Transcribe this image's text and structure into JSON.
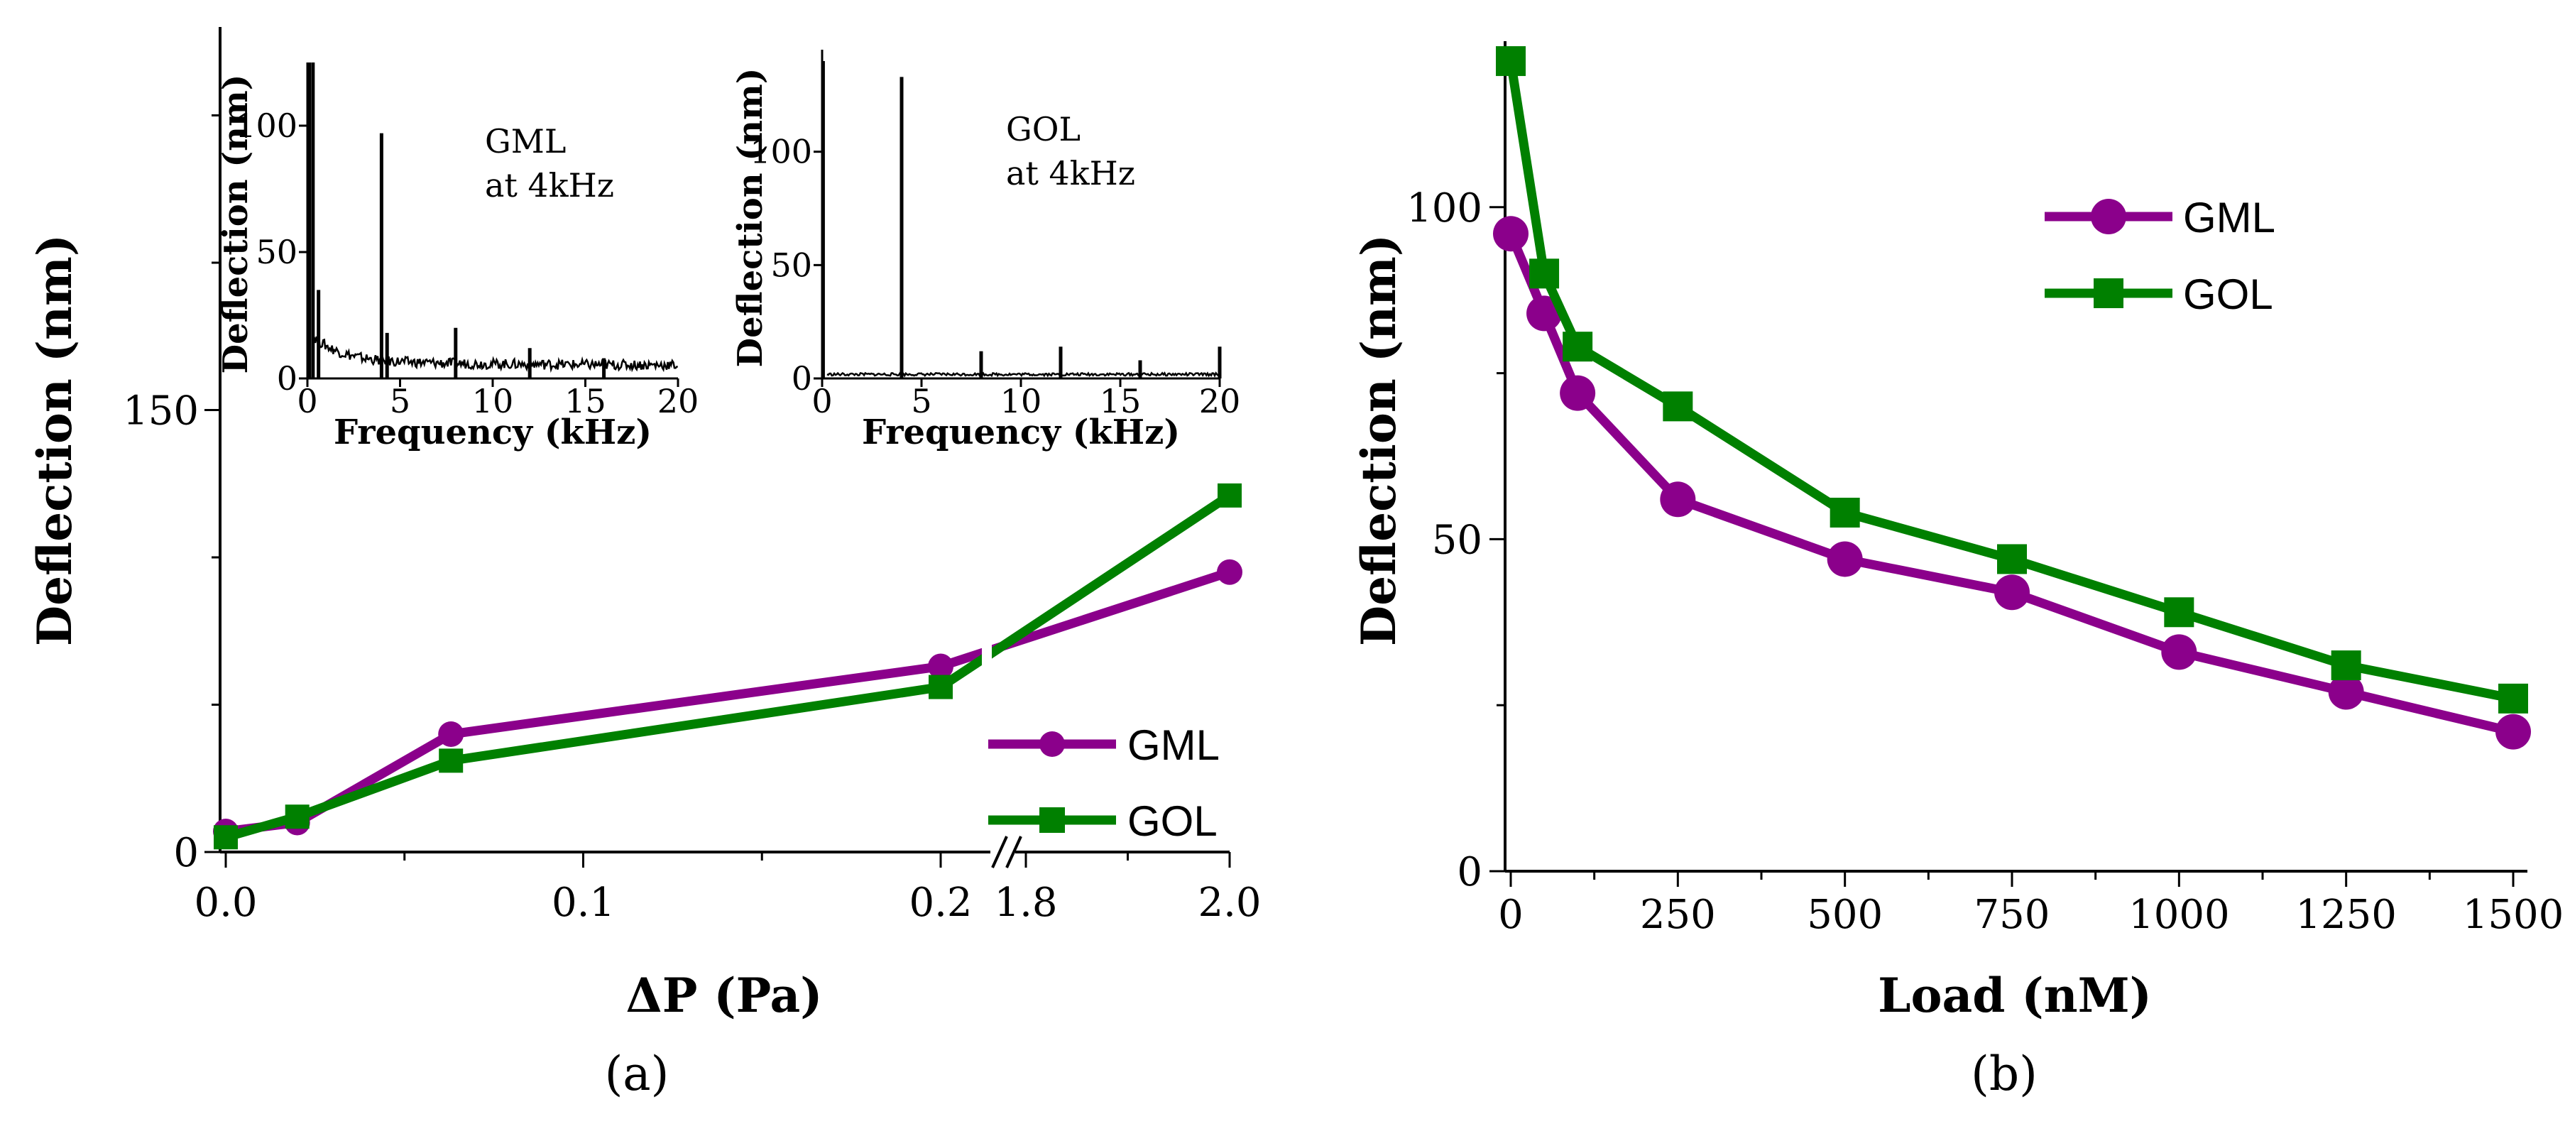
{
  "colors": {
    "GML": "#8B008B",
    "GOL": "#008000",
    "axis": "#000000"
  },
  "chart_data": [
    {
      "panel": "(a)",
      "type": "line",
      "title": "",
      "xlabel": "ΔP (Pa)",
      "ylabel": "Deflection (nm)",
      "x_ticks": [
        "0.0",
        "0.1",
        "0.2",
        "1.8",
        "2.0"
      ],
      "y_ticks": [
        "0",
        "150"
      ],
      "ylim": [
        0,
        280
      ],
      "x_break": [
        0.2,
        1.8
      ],
      "legend": [
        "GML",
        "GOL"
      ],
      "legend_position": "lower-right",
      "series": [
        {
          "name": "GML",
          "marker": "circle",
          "x": [
            0.0,
            0.02,
            0.063,
            0.2,
            2.0
          ],
          "y": [
            7,
            10,
            40,
            63,
            95
          ]
        },
        {
          "name": "GOL",
          "marker": "square",
          "x": [
            0.0,
            0.02,
            0.063,
            0.2,
            2.0
          ],
          "y": [
            5,
            12,
            31,
            56,
            121
          ]
        }
      ]
    },
    {
      "panel": "inset-GML",
      "type": "line",
      "xlabel": "Frequency (kHz)",
      "ylabel": "Deflection (nm)",
      "annotation": [
        "GML",
        "at 4kHz"
      ],
      "x_ticks": [
        "0",
        "5",
        "10",
        "15",
        "20"
      ],
      "y_ticks": [
        "0",
        "50",
        "100"
      ],
      "xlim": [
        0,
        20
      ],
      "ylim": [
        0,
        125
      ],
      "peaks": [
        {
          "x": 0.1,
          "y": 125
        },
        {
          "x": 0.3,
          "y": 125
        },
        {
          "x": 0.6,
          "y": 35
        },
        {
          "x": 4.0,
          "y": 97
        },
        {
          "x": 4.3,
          "y": 18
        },
        {
          "x": 8.0,
          "y": 20
        },
        {
          "x": 12.0,
          "y": 12
        },
        {
          "x": 16.0,
          "y": 8
        }
      ]
    },
    {
      "panel": "inset-GOL",
      "type": "line",
      "xlabel": "Frequency (kHz)",
      "ylabel": "Deflection (nm)",
      "annotation": [
        "GOL",
        "at 4kHz"
      ],
      "x_ticks": [
        "0",
        "5",
        "10",
        "15",
        "20"
      ],
      "y_ticks": [
        "0",
        "50",
        "100"
      ],
      "xlim": [
        0,
        20
      ],
      "ylim": [
        0,
        145
      ],
      "peaks": [
        {
          "x": 0.05,
          "y": 140
        },
        {
          "x": 4.0,
          "y": 133
        },
        {
          "x": 8.0,
          "y": 12
        },
        {
          "x": 12.0,
          "y": 14
        },
        {
          "x": 16.0,
          "y": 8
        },
        {
          "x": 20.0,
          "y": 14
        }
      ]
    },
    {
      "panel": "(b)",
      "type": "line",
      "title": "",
      "xlabel": "Load (nM)",
      "ylabel": "Deflection (nm)",
      "x_ticks": [
        "0",
        "250",
        "500",
        "750",
        "1000",
        "1250",
        "1500"
      ],
      "y_ticks": [
        "0",
        "50",
        "100"
      ],
      "xlim": [
        0,
        1500
      ],
      "ylim": [
        0,
        125
      ],
      "legend": [
        "GML",
        "GOL"
      ],
      "legend_position": "top-center",
      "series": [
        {
          "name": "GML",
          "marker": "circle",
          "x": [
            0,
            50,
            100,
            250,
            500,
            750,
            1000,
            1250,
            1500
          ],
          "y": [
            96,
            84,
            72,
            56,
            47,
            42,
            33,
            27,
            21
          ]
        },
        {
          "name": "GOL",
          "marker": "square",
          "x": [
            0,
            50,
            100,
            250,
            500,
            750,
            1000,
            1250,
            1500
          ],
          "y": [
            122,
            90,
            79,
            70,
            54,
            47,
            39,
            31,
            26
          ]
        }
      ]
    }
  ]
}
